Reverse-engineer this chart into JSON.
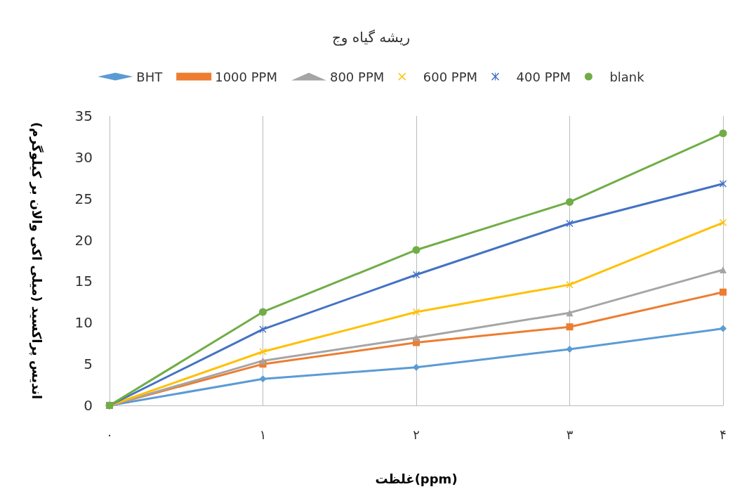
{
  "chart_data": {
    "type": "line",
    "title": "ریشه گیاه وج",
    "xlabel": "غلظت(ppm)",
    "ylabel": "اندیس پراکسید (میلی اکی والان بر کیلوگرم)",
    "categories": [
      "۰",
      "۱",
      "۲",
      "۳",
      "۴"
    ],
    "series": [
      {
        "name": "BHT",
        "color": "#5b9bd5",
        "marker": "diamond",
        "values": [
          0,
          3.2,
          4.6,
          6.8,
          9.3
        ]
      },
      {
        "name": "1000 PPM",
        "color": "#ed7d31",
        "marker": "square",
        "values": [
          0,
          5.0,
          7.6,
          9.5,
          13.7
        ]
      },
      {
        "name": "800 PPM",
        "color": "#a5a5a5",
        "marker": "triangle",
        "values": [
          0,
          5.4,
          8.2,
          11.2,
          16.4
        ]
      },
      {
        "name": "600 PPM",
        "color": "#ffc000",
        "marker": "cross",
        "values": [
          0,
          6.5,
          11.3,
          14.6,
          22.1
        ]
      },
      {
        "name": "400 PPM",
        "color": "#4472c4",
        "marker": "star",
        "values": [
          0,
          9.2,
          15.8,
          22.0,
          26.8
        ]
      },
      {
        "name": "blank",
        "color": "#70ad47",
        "marker": "circle",
        "values": [
          0,
          11.3,
          18.8,
          24.6,
          32.9
        ]
      }
    ],
    "ylim": [
      0,
      35
    ],
    "yticks": [
      0,
      5,
      10,
      15,
      20,
      25,
      30,
      35
    ],
    "grid": "x",
    "legend": "top",
    "line_style": "solid"
  }
}
